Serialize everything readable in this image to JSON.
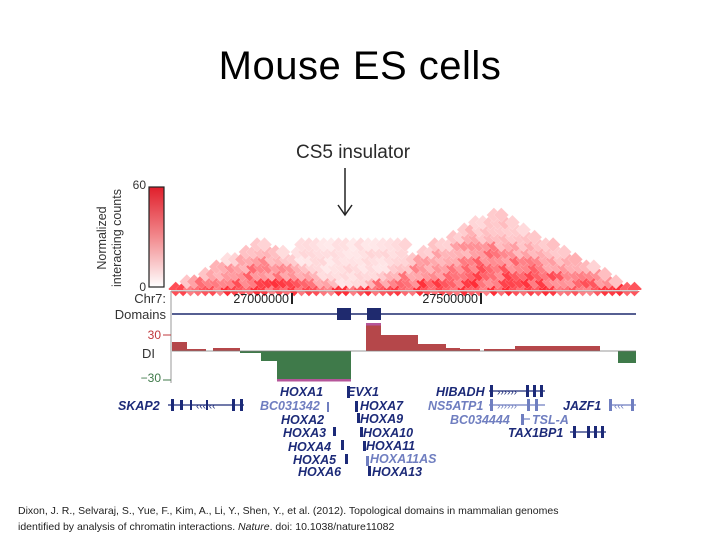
{
  "slide": {
    "title": "Mouse ES cells"
  },
  "figure": {
    "annotation": "CS5 insulator",
    "colorbar": {
      "label_line1": "Normalized",
      "label_line2": "interacting counts",
      "max": "60",
      "min": "0"
    },
    "chr_label": "Chr7:",
    "coord_1": "27000000",
    "coord_2": "27500000",
    "domains_label": "Domains",
    "di_label": "DI",
    "di_max": "30",
    "di_min": "−30",
    "genes": {
      "skap2": "SKAP2",
      "hoxa1": "HOXA1",
      "bc031342": "BC031342",
      "hoxa2": "HOXA2",
      "hoxa3": "HOXA3",
      "hoxa4": "HOXA4",
      "hoxa5": "HOXA5",
      "hoxa6": "HOXA6",
      "evx1": "EVX1",
      "hoxa7": "HOXA7",
      "hoxa9": "HOXA9",
      "hoxa10": "HOXA10",
      "hoxa11": "HOXA11",
      "hoxa11as": "HOXA11AS",
      "hoxa13": "HOXA13",
      "hibadh": "HIBADH",
      "ns5atp1": "NS5ATP1",
      "bc034444": "BC034444",
      "tsla": "TSL-A",
      "tax1bp1": "TAX1BP1",
      "jazf1": "JAZF1"
    },
    "colors": {
      "heatmap": "#e8303a",
      "domain": "#1f2a6e",
      "di_positive": "#b5474a",
      "di_negative": "#3f7a4a",
      "gene_dark": "#1c2a78",
      "gene_light": "#6f7ec0"
    }
  },
  "citation": {
    "text_before": "Dixon, J. R., Selvaraj, S., Yue, F., Kim, A., Li, Y., Shen, Y., et al. (2012). Topological domains in mammalian genomes identified by analysis of chromatin interactions.",
    "journal": "Nature",
    "text_after": ". doi: 10.1038/nature11082"
  }
}
